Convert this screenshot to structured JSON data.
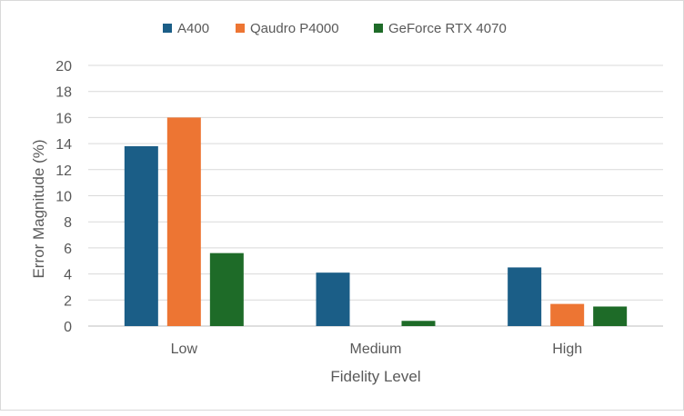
{
  "chart_data": {
    "type": "bar",
    "title": "",
    "xlabel": "Fidelity Level",
    "ylabel": "Error Magnitude (%)",
    "categories": [
      "Low",
      "Medium",
      "High"
    ],
    "ylim": [
      0,
      20
    ],
    "yticks": [
      0,
      2,
      4,
      6,
      8,
      10,
      12,
      14,
      16,
      18,
      20
    ],
    "grid": true,
    "legend_position": "top",
    "series": [
      {
        "name": "A400",
        "color": "#1b5e87",
        "values": [
          13.8,
          4.1,
          4.5
        ]
      },
      {
        "name": "Qaudro P4000",
        "color": "#ed7533",
        "values": [
          16.0,
          0,
          1.7
        ]
      },
      {
        "name": "GeForce RTX 4070",
        "color": "#1e6b28",
        "values": [
          5.6,
          0.4,
          1.5
        ]
      }
    ]
  }
}
